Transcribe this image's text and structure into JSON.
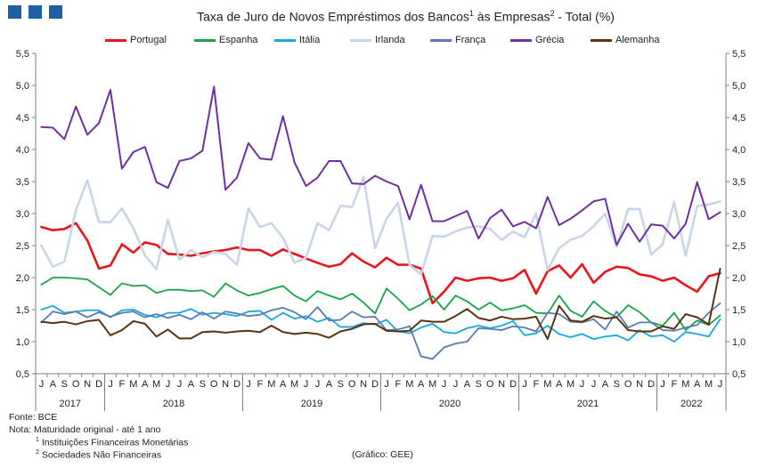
{
  "header": {
    "title": "Taxa de Juro de Novos Empréstimos dos Bancos¹ às Empresas² - Total (%)",
    "title_parts": [
      "Taxa de Juro de Novos Empréstimos dos Bancos",
      "1",
      " às Empresas",
      "2",
      " - Total (%)"
    ],
    "logo_color": "#1f5fa6"
  },
  "footer": {
    "source": "Fonte: BCE",
    "note": "Nota: Maturidade original - até 1 ano",
    "footnote1_num": "1",
    "footnote1_text": " Instituições Financeiras Monetárias",
    "footnote2_num": "2",
    "footnote2_text": " Sociedades Não Financeiras",
    "credit": "(Gráfico: GEE)"
  },
  "chart_data": {
    "type": "line",
    "title": "Taxa de Juro de Novos Empréstimos dos Bancos¹ às Empresas² - Total (%)",
    "xlabel": "",
    "ylabel": "",
    "ylim": [
      0.5,
      5.5
    ],
    "yticks": [
      "0,5",
      "1,0",
      "1,5",
      "2,0",
      "2,5",
      "3,0",
      "3,5",
      "4,0",
      "4,5",
      "5,0",
      "5,5"
    ],
    "grid": false,
    "legend_position": "top",
    "month_labels": [
      "J",
      "A",
      "S",
      "O",
      "N",
      "D",
      "J",
      "F",
      "M",
      "A",
      "M",
      "J",
      "J",
      "A",
      "S",
      "O",
      "N",
      "D",
      "J",
      "F",
      "M",
      "A",
      "M",
      "J",
      "J",
      "A",
      "S",
      "O",
      "N",
      "D",
      "J",
      "F",
      "M",
      "A",
      "M",
      "J",
      "J",
      "A",
      "S",
      "O",
      "N",
      "D",
      "J",
      "F",
      "M",
      "A",
      "M",
      "J",
      "J",
      "A",
      "S",
      "O",
      "N",
      "D",
      "J",
      "F",
      "M",
      "A",
      "M",
      "J"
    ],
    "year_labels": [
      "2017",
      "2018",
      "2019",
      "2020",
      "2021",
      "2022"
    ],
    "year_start_index": [
      0,
      6,
      18,
      30,
      42,
      54
    ],
    "x": [
      "2017-07",
      "2017-08",
      "2017-09",
      "2017-10",
      "2017-11",
      "2017-12",
      "2018-01",
      "2018-02",
      "2018-03",
      "2018-04",
      "2018-05",
      "2018-06",
      "2018-07",
      "2018-08",
      "2018-09",
      "2018-10",
      "2018-11",
      "2018-12",
      "2019-01",
      "2019-02",
      "2019-03",
      "2019-04",
      "2019-05",
      "2019-06",
      "2019-07",
      "2019-08",
      "2019-09",
      "2019-10",
      "2019-11",
      "2019-12",
      "2020-01",
      "2020-02",
      "2020-03",
      "2020-04",
      "2020-05",
      "2020-06",
      "2020-07",
      "2020-08",
      "2020-09",
      "2020-10",
      "2020-11",
      "2020-12",
      "2021-01",
      "2021-02",
      "2021-03",
      "2021-04",
      "2021-05",
      "2021-06",
      "2021-07",
      "2021-08",
      "2021-09",
      "2021-10",
      "2021-11",
      "2021-12",
      "2022-01",
      "2022-02",
      "2022-03",
      "2022-04",
      "2022-05",
      "2022-06"
    ],
    "series": [
      {
        "name": "Portugal",
        "color": "#e8151b",
        "width": 2.6,
        "values": [
          2.79,
          2.74,
          2.76,
          2.85,
          2.58,
          2.14,
          2.19,
          2.52,
          2.39,
          2.55,
          2.51,
          2.37,
          2.36,
          2.34,
          2.38,
          2.41,
          2.43,
          2.47,
          2.43,
          2.43,
          2.34,
          2.44,
          2.37,
          2.3,
          2.23,
          2.17,
          2.21,
          2.38,
          2.25,
          2.16,
          2.31,
          2.2,
          2.2,
          2.14,
          1.6,
          1.78,
          2.0,
          1.95,
          1.99,
          2.0,
          1.95,
          1.99,
          2.12,
          1.75,
          2.1,
          2.19,
          2.0,
          2.21,
          1.92,
          2.09,
          2.17,
          2.15,
          2.05,
          2.02,
          1.95,
          2.0,
          1.88,
          1.78,
          2.02,
          2.07
        ]
      },
      {
        "name": "Espanha",
        "color": "#1aa349",
        "width": 1.8,
        "values": [
          1.89,
          2.0,
          2.0,
          1.99,
          1.97,
          1.85,
          1.73,
          1.91,
          1.87,
          1.88,
          1.76,
          1.81,
          1.81,
          1.79,
          1.8,
          1.7,
          1.91,
          1.8,
          1.72,
          1.76,
          1.82,
          1.87,
          1.72,
          1.63,
          1.79,
          1.72,
          1.66,
          1.75,
          1.61,
          1.44,
          1.83,
          1.67,
          1.49,
          1.58,
          1.71,
          1.5,
          1.72,
          1.63,
          1.5,
          1.61,
          1.49,
          1.52,
          1.57,
          1.45,
          1.44,
          1.72,
          1.48,
          1.39,
          1.63,
          1.48,
          1.38,
          1.57,
          1.46,
          1.3,
          1.25,
          1.45,
          1.18,
          1.33,
          1.26,
          1.41
        ]
      },
      {
        "name": "Itália",
        "color": "#1aa7e0",
        "width": 1.8,
        "values": [
          1.5,
          1.56,
          1.45,
          1.47,
          1.49,
          1.49,
          1.38,
          1.49,
          1.5,
          1.42,
          1.38,
          1.45,
          1.45,
          1.51,
          1.42,
          1.45,
          1.43,
          1.4,
          1.47,
          1.48,
          1.34,
          1.45,
          1.36,
          1.4,
          1.31,
          1.37,
          1.23,
          1.23,
          1.29,
          1.27,
          1.34,
          1.16,
          1.13,
          1.22,
          1.28,
          1.15,
          1.13,
          1.21,
          1.25,
          1.21,
          1.25,
          1.32,
          1.1,
          1.13,
          1.25,
          1.12,
          1.07,
          1.12,
          1.04,
          1.08,
          1.1,
          1.02,
          1.18,
          1.08,
          1.1,
          1.0,
          1.15,
          1.12,
          1.08,
          1.35
        ]
      },
      {
        "name": "Irlanda",
        "color": "#c9d5e6",
        "width": 2.6,
        "values": [
          2.5,
          2.17,
          2.25,
          3.05,
          3.52,
          2.87,
          2.86,
          3.08,
          2.77,
          2.35,
          2.13,
          2.9,
          2.28,
          2.43,
          2.32,
          2.4,
          2.37,
          2.2,
          3.08,
          2.79,
          2.85,
          2.62,
          2.23,
          2.31,
          2.85,
          2.74,
          3.12,
          3.1,
          3.57,
          2.46,
          2.92,
          3.17,
          2.2,
          2.05,
          2.65,
          2.64,
          2.72,
          2.78,
          2.8,
          2.76,
          2.59,
          2.72,
          2.63,
          3.0,
          2.12,
          2.46,
          2.59,
          2.65,
          2.8,
          3.0,
          2.48,
          3.07,
          3.07,
          2.36,
          2.52,
          3.18,
          2.34,
          3.12,
          3.14,
          3.19
        ]
      },
      {
        "name": "França",
        "color": "#5b7ab5",
        "width": 1.8,
        "values": [
          1.3,
          1.47,
          1.43,
          1.47,
          1.38,
          1.46,
          1.39,
          1.45,
          1.47,
          1.38,
          1.43,
          1.37,
          1.42,
          1.35,
          1.46,
          1.36,
          1.47,
          1.44,
          1.4,
          1.42,
          1.49,
          1.53,
          1.46,
          1.35,
          1.54,
          1.33,
          1.34,
          1.47,
          1.38,
          1.39,
          1.18,
          1.19,
          1.24,
          0.77,
          0.73,
          0.91,
          0.97,
          1.0,
          1.21,
          1.2,
          1.18,
          1.24,
          1.22,
          1.16,
          1.45,
          1.43,
          1.31,
          1.3,
          1.35,
          1.19,
          1.47,
          1.22,
          1.3,
          1.3,
          1.18,
          1.17,
          1.22,
          1.26,
          1.45,
          1.6
        ]
      },
      {
        "name": "Grécia",
        "color": "#7030a0",
        "width": 2.0,
        "values": [
          4.35,
          4.34,
          4.16,
          4.67,
          4.23,
          4.41,
          4.93,
          3.7,
          3.96,
          4.04,
          3.49,
          3.4,
          3.82,
          3.86,
          3.98,
          4.98,
          3.37,
          3.56,
          4.1,
          3.86,
          3.84,
          4.52,
          3.8,
          3.43,
          3.56,
          3.82,
          3.82,
          3.47,
          3.46,
          3.59,
          3.5,
          3.43,
          2.91,
          3.45,
          2.88,
          2.88,
          2.96,
          3.04,
          2.61,
          2.93,
          3.06,
          2.8,
          2.87,
          2.77,
          3.26,
          2.82,
          2.92,
          3.05,
          3.19,
          3.23,
          2.51,
          2.84,
          2.56,
          2.83,
          2.81,
          2.61,
          2.84,
          3.49,
          2.91,
          3.02
        ]
      },
      {
        "name": "Alemanha",
        "color": "#5a3312",
        "width": 2.0,
        "values": [
          1.31,
          1.29,
          1.31,
          1.27,
          1.32,
          1.34,
          1.1,
          1.18,
          1.32,
          1.28,
          1.08,
          1.19,
          1.05,
          1.05,
          1.15,
          1.16,
          1.14,
          1.16,
          1.17,
          1.15,
          1.25,
          1.15,
          1.12,
          1.14,
          1.12,
          1.06,
          1.16,
          1.2,
          1.27,
          1.28,
          1.17,
          1.16,
          1.17,
          1.33,
          1.31,
          1.31,
          1.4,
          1.51,
          1.37,
          1.33,
          1.39,
          1.35,
          1.36,
          1.39,
          1.04,
          1.56,
          1.33,
          1.31,
          1.4,
          1.36,
          1.38,
          1.18,
          1.16,
          1.16,
          1.24,
          1.2,
          1.43,
          1.38,
          1.27,
          2.14
        ]
      }
    ]
  }
}
